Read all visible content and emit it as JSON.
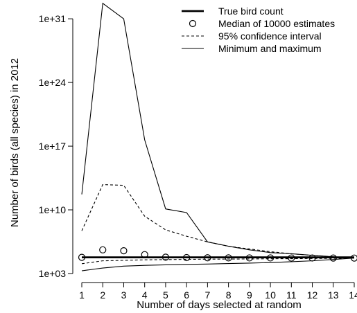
{
  "chart_data": {
    "type": "line",
    "xlabel": "Number of days selected at random",
    "ylabel": "Number of birds (all species) in 2012",
    "y_scale": "log10",
    "xlim": [
      1,
      14
    ],
    "ylim": [
      1000,
      1e+32
    ],
    "x_ticks": [
      1,
      2,
      3,
      4,
      5,
      6,
      7,
      8,
      9,
      10,
      11,
      12,
      13,
      14
    ],
    "y_ticks": [
      {
        "value": 1000.0,
        "label": "1e+03"
      },
      {
        "value": 10000000000.0,
        "label": "1e+10"
      },
      {
        "value": 1e+17,
        "label": "1e+17"
      },
      {
        "value": 1e+24,
        "label": "1e+24"
      },
      {
        "value": 1e+31,
        "label": "1e+31"
      }
    ],
    "legend_position": "top-right",
    "x": [
      1,
      2,
      3,
      4,
      5,
      6,
      7,
      8,
      9,
      10,
      11,
      12,
      13,
      14
    ],
    "series": [
      {
        "name": "True bird count",
        "style": "thick-line",
        "values": [
          60000,
          60000,
          60000,
          60000,
          60000,
          60000,
          60000,
          60000,
          60000,
          60000,
          60000,
          60000,
          60000,
          60000
        ]
      },
      {
        "name": "Median of 10000 estimates",
        "style": "open-circle",
        "values": [
          60000,
          400000,
          316000,
          120000,
          63000,
          56000,
          54000,
          53000,
          52000,
          52000,
          51000,
          51000,
          50500,
          50000
        ]
      },
      {
        "name": "95% confidence interval",
        "style": "dashed",
        "group": "ci",
        "values": [
          50000000,
          6000000000000.0,
          5000000000000.0,
          2000000000.0,
          63000000,
          12600000.0,
          3000000.0,
          1000000.0,
          500000,
          250000,
          150000,
          100000,
          70000,
          50000
        ]
      },
      {
        "name": "95% confidence interval",
        "style": "dashed",
        "group": "ci",
        "values": [
          12000,
          25000,
          28000,
          32000,
          34000,
          36000,
          38000,
          39000,
          40000,
          42000,
          43000,
          45000,
          47000,
          50000
        ]
      },
      {
        "name": "Minimum and maximum",
        "style": "thin-line",
        "group": "minmax",
        "values": [
          500000000000.0,
          5e+32,
          1e+31,
          5e+17,
          12600000000.0,
          5000000000.0,
          3000000.0,
          1000000.0,
          400000,
          200000,
          150000,
          100000,
          70000,
          50000
        ]
      },
      {
        "name": "Minimum and maximum",
        "style": "thin-line",
        "group": "minmax",
        "values": [
          2000,
          4000,
          6500,
          8000,
          9000,
          10000,
          11000,
          12500,
          14000,
          16000,
          20000,
          25000,
          35000,
          50000
        ]
      }
    ],
    "legend": [
      {
        "label": "True bird count",
        "style": "thick-line"
      },
      {
        "label": "Median of 10000 estimates",
        "style": "open-circle"
      },
      {
        "label": "95% confidence interval",
        "style": "dashed"
      },
      {
        "label": "Minimum and maximum",
        "style": "thin-line"
      }
    ]
  }
}
